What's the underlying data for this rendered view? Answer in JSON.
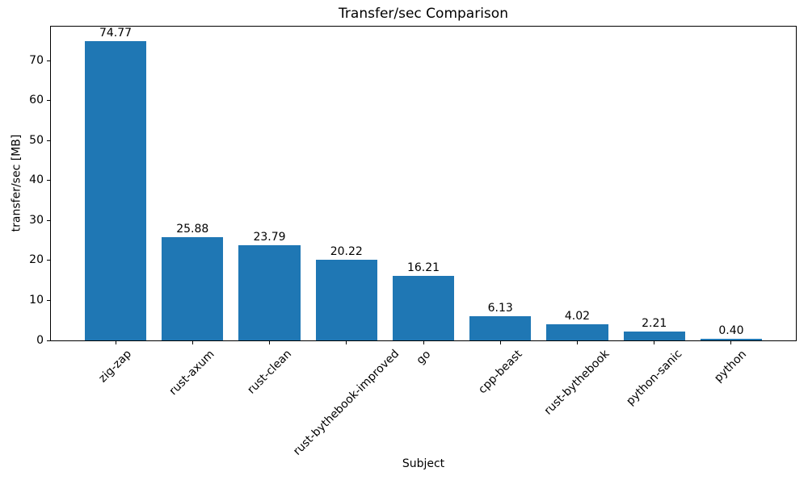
{
  "figure": {
    "background": "#ffffff"
  },
  "chart_data": {
    "type": "bar",
    "title": "Transfer/sec Comparison",
    "xlabel": "Subject",
    "ylabel": "transfer/sec [MB]",
    "categories": [
      "zig-zap",
      "rust-axum",
      "rust-clean",
      "rust-bythebook-improved",
      "go",
      "cpp-beast",
      "rust-bythebook",
      "python-sanic",
      "python"
    ],
    "values": [
      74.77,
      25.88,
      23.79,
      20.22,
      16.21,
      6.13,
      4.02,
      2.21,
      0.4
    ],
    "value_labels": [
      "74.77",
      "25.88",
      "23.79",
      "20.22",
      "16.21",
      "6.13",
      "4.02",
      "2.21",
      "0.40"
    ],
    "bar_color": "#1f77b4",
    "axis_color": "#000000",
    "text_color": "#000000",
    "ylim": [
      0,
      78.5
    ],
    "xlim": [
      -0.84,
      8.84
    ],
    "yticks": [
      0,
      10,
      20,
      30,
      40,
      50,
      60,
      70
    ],
    "bar_width_units": 0.8,
    "x_tick_rotation_deg": 45,
    "grid": false,
    "legend_position": "none"
  }
}
